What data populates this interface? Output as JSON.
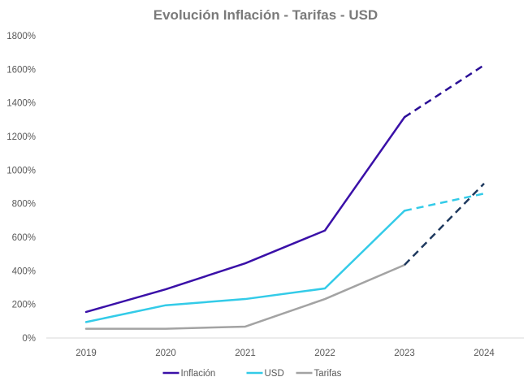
{
  "chart_data": {
    "type": "line",
    "title": "Evolución Inflación - Tarifas - USD",
    "xlabel": "",
    "ylabel": "",
    "categories": [
      "2019",
      "2020",
      "2021",
      "2022",
      "2023",
      "2024"
    ],
    "ylim": [
      0,
      1800
    ],
    "yticks": [
      0,
      200,
      400,
      600,
      800,
      1000,
      1200,
      1400,
      1600,
      1800
    ],
    "ytick_suffix": "%",
    "grid": false,
    "legend_position": "bottom",
    "projection_from_category": "2023",
    "series": [
      {
        "name": "Inflación",
        "color": "#3a10a8",
        "projection_color": "#2a0f96",
        "values": [
          155,
          290,
          445,
          640,
          1315,
          1625
        ]
      },
      {
        "name": "USD",
        "color": "#33cbe8",
        "projection_color": "#33cbe8",
        "values": [
          95,
          195,
          232,
          295,
          758,
          860
        ]
      },
      {
        "name": "Tarifas",
        "color": "#a3a3a3",
        "projection_color": "#1f3a5f",
        "values": [
          55,
          55,
          68,
          232,
          435,
          920
        ]
      }
    ]
  }
}
